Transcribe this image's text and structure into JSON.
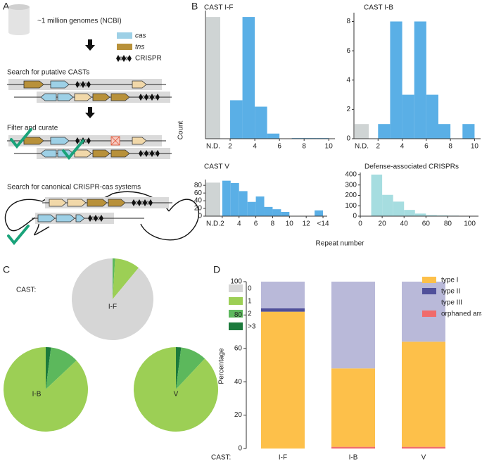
{
  "panel_labels": [
    "A",
    "B",
    "C",
    "D"
  ],
  "diagram": {
    "database": "~1 million genomes (NCBI)",
    "legend": [
      "cas",
      "tns",
      "CRISPR"
    ],
    "steps": [
      "Search for putative CASTs",
      "Filter and curate",
      "Search for canonical CRISPR-cas systems"
    ]
  },
  "histogram_axes": {
    "ylabel": "Count",
    "xlabel": "Repeat number"
  },
  "chart_data": [
    {
      "type": "histogram",
      "title": "CAST I-F",
      "color": "#5aafe6",
      "nd": {
        "label": "N.D.",
        "value": 190,
        "color": "#cfd4d4"
      },
      "bins": [
        2,
        3,
        4,
        5,
        6,
        7,
        8,
        9,
        10
      ],
      "counts": [
        60,
        190,
        50,
        8,
        0,
        1,
        1,
        1
      ],
      "xlim": [
        0,
        10.5
      ],
      "ylim": [
        0,
        200
      ],
      "xticks": [
        2,
        4,
        6,
        8,
        10
      ]
    },
    {
      "type": "histogram",
      "title": "CAST I-B",
      "color": "#5aafe6",
      "nd": {
        "label": "N.D.",
        "value": 1,
        "color": "#cfd4d4"
      },
      "bins": [
        2,
        3,
        4,
        5,
        6,
        7,
        8,
        9,
        10
      ],
      "counts": [
        1,
        8,
        3,
        8,
        3,
        1,
        0,
        1
      ],
      "xlim": [
        0,
        10.5
      ],
      "ylim": [
        0,
        8.6
      ],
      "xticks": [
        2,
        4,
        6,
        8,
        10
      ],
      "yticks": [
        0,
        2,
        4,
        6,
        8
      ]
    },
    {
      "type": "histogram",
      "title": "CAST V",
      "color": "#5aafe6",
      "nd": {
        "label": "N.D.",
        "value": 87,
        "color": "#cfd4d4"
      },
      "bins": [
        2,
        3,
        4,
        5,
        6,
        7,
        8,
        9,
        10,
        11,
        12,
        13,
        14
      ],
      "counts": [
        92,
        86,
        65,
        37,
        51,
        24,
        18,
        11,
        0,
        0,
        0,
        15
      ],
      "xlim": [
        0,
        14.5
      ],
      "ylim": [
        0,
        95
      ],
      "xticks": [
        2,
        4,
        6,
        8,
        10,
        12,
        {
          "value": 14,
          "label": "<14"
        }
      ],
      "yticks": [
        0,
        20,
        40,
        60,
        80
      ]
    },
    {
      "type": "histogram",
      "title": "Defense-associated CRISPRs",
      "color": "#a6dde0",
      "bins": [
        10,
        20,
        30,
        40,
        50,
        60,
        70,
        80,
        90
      ],
      "counts": [
        400,
        205,
        140,
        60,
        25,
        10,
        7,
        5
      ],
      "xlim": [
        0,
        108
      ],
      "ylim": [
        0,
        420
      ],
      "xticks": [
        0,
        20,
        40,
        60,
        80,
        100
      ],
      "yticks": [
        0,
        100,
        200,
        300,
        400
      ]
    },
    {
      "type": "pie",
      "label": "CAST:",
      "categories": [
        "0",
        "1",
        "2",
        ">3"
      ],
      "colors": [
        "#d6d6d6",
        "#9ccf55",
        "#5cb85c",
        "#1c7a3c"
      ],
      "series": [
        {
          "name": "I-F",
          "values": [
            89,
            10,
            1,
            0
          ]
        },
        {
          "name": "I-B",
          "values": [
            0,
            87,
            11,
            2
          ]
        },
        {
          "name": "V",
          "values": [
            0,
            88,
            10,
            2
          ]
        }
      ]
    },
    {
      "type": "stacked_bar",
      "category_label": "CAST:",
      "categories": [
        "I-F",
        "I-B",
        "V"
      ],
      "ylabel": "Percentage",
      "ylim": [
        0,
        100
      ],
      "yticks": [
        0,
        20,
        40,
        60,
        80,
        100
      ],
      "legend": "upper right",
      "series": [
        {
          "name": "type I",
          "color": "#fdc04a",
          "values": [
            82,
            47,
            63
          ]
        },
        {
          "name": "type II",
          "color": "#50509a",
          "values": [
            2,
            0,
            0
          ]
        },
        {
          "name": "type III",
          "color": "#b9b9d9",
          "values": [
            16,
            52,
            36
          ]
        },
        {
          "name": "orphaned array",
          "color": "#f06b6b",
          "values": [
            0,
            1,
            1
          ]
        }
      ]
    }
  ]
}
